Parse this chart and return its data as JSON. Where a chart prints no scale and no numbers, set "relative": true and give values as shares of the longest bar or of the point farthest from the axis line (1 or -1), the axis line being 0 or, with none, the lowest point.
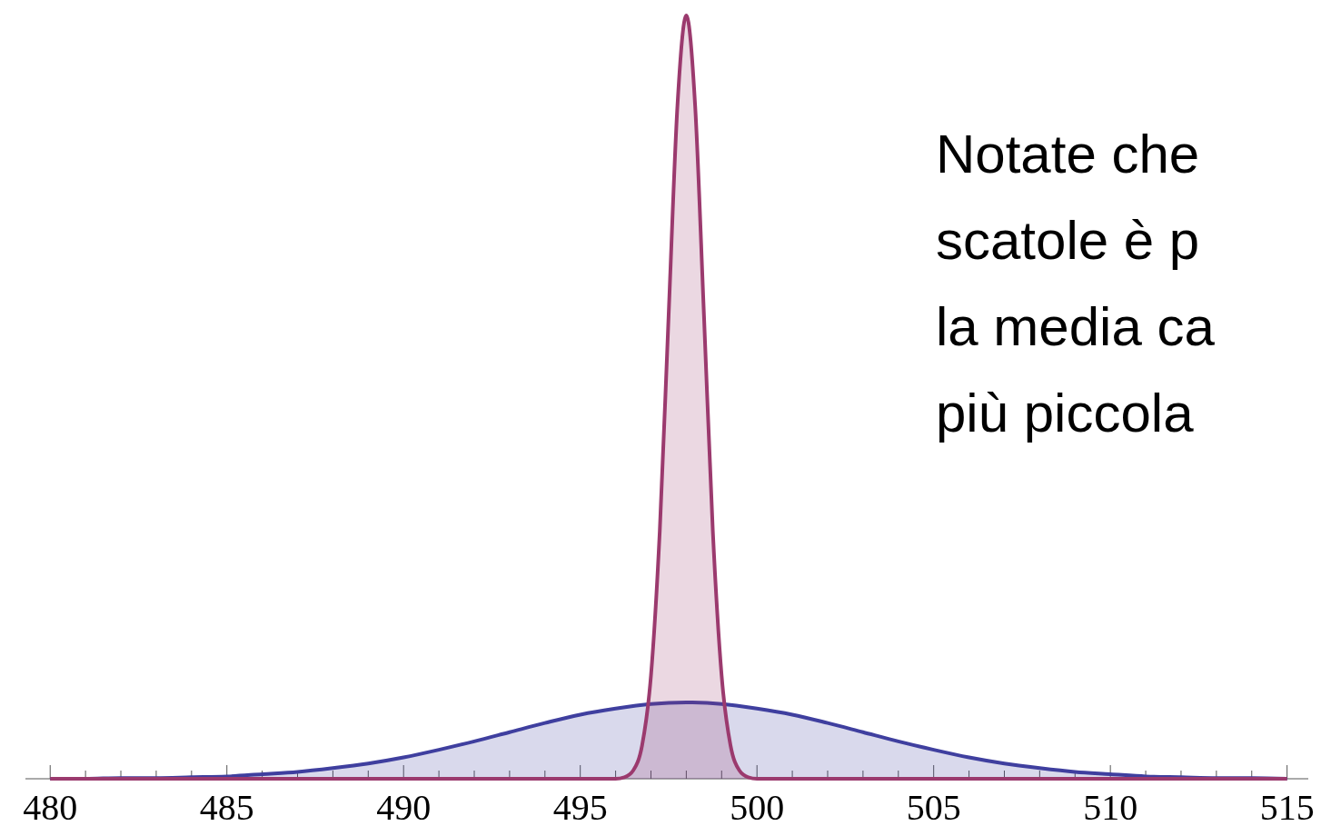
{
  "chart_data": {
    "type": "area",
    "relative": true,
    "xlim": [
      479.3,
      515.6
    ],
    "xticks": [
      480,
      {
        "value": 481,
        "label": null
      },
      {
        "value": 482,
        "label": null
      },
      {
        "value": 483,
        "label": null
      },
      {
        "value": 484,
        "label": null
      },
      485,
      {
        "value": 486,
        "label": null
      },
      {
        "value": 487,
        "label": null
      },
      {
        "value": 488,
        "label": null
      },
      {
        "value": 489,
        "label": null
      },
      490,
      {
        "value": 491,
        "label": null
      },
      {
        "value": 492,
        "label": null
      },
      {
        "value": 493,
        "label": null
      },
      {
        "value": 494,
        "label": null
      },
      495,
      {
        "value": 496,
        "label": null
      },
      {
        "value": 497,
        "label": null
      },
      {
        "value": 498,
        "label": null
      },
      {
        "value": 499,
        "label": null
      },
      500,
      {
        "value": 501,
        "label": null
      },
      {
        "value": 502,
        "label": null
      },
      {
        "value": 503,
        "label": null
      },
      {
        "value": 504,
        "label": null
      },
      505,
      {
        "value": 506,
        "label": null
      },
      {
        "value": 507,
        "label": null
      },
      {
        "value": 508,
        "label": null
      },
      {
        "value": 509,
        "label": null
      },
      510,
      {
        "value": 511,
        "label": null
      },
      {
        "value": 512,
        "label": null
      },
      {
        "value": 513,
        "label": null
      },
      {
        "value": 514,
        "label": null
      },
      515
    ],
    "series": [
      {
        "color": "#3f3f9f",
        "x": [
          480,
          481,
          482,
          483,
          484,
          485,
          486,
          487,
          488,
          489,
          490,
          491,
          492,
          493,
          494,
          495,
          496,
          497,
          498,
          499,
          500,
          501,
          502,
          503,
          504,
          505,
          506,
          507,
          508,
          509,
          510,
          511,
          512,
          513,
          514,
          515
        ],
        "values": [
          0.0,
          0.0,
          0.001,
          0.001,
          0.002,
          0.003,
          0.006,
          0.009,
          0.014,
          0.02,
          0.028,
          0.038,
          0.049,
          0.061,
          0.073,
          0.084,
          0.092,
          0.098,
          0.1,
          0.098,
          0.092,
          0.084,
          0.073,
          0.061,
          0.049,
          0.038,
          0.028,
          0.02,
          0.014,
          0.009,
          0.006,
          0.003,
          0.002,
          0.001,
          0.001,
          0.0
        ]
      },
      {
        "color": "#9b3a6e",
        "x": [
          480,
          496,
          496.25,
          496.5,
          496.75,
          497,
          497.25,
          497.5,
          497.75,
          498,
          498.25,
          498.5,
          498.75,
          499,
          499.25,
          499.5,
          499.75,
          500,
          515
        ],
        "values": [
          0,
          0,
          0.002,
          0.011,
          0.044,
          0.135,
          0.325,
          0.607,
          0.882,
          1,
          0.882,
          0.607,
          0.325,
          0.135,
          0.044,
          0.011,
          0.002,
          0,
          0
        ]
      }
    ],
    "annotations": [
      "Notate che",
      "scatole è p",
      "la media ca",
      "più piccola"
    ]
  }
}
